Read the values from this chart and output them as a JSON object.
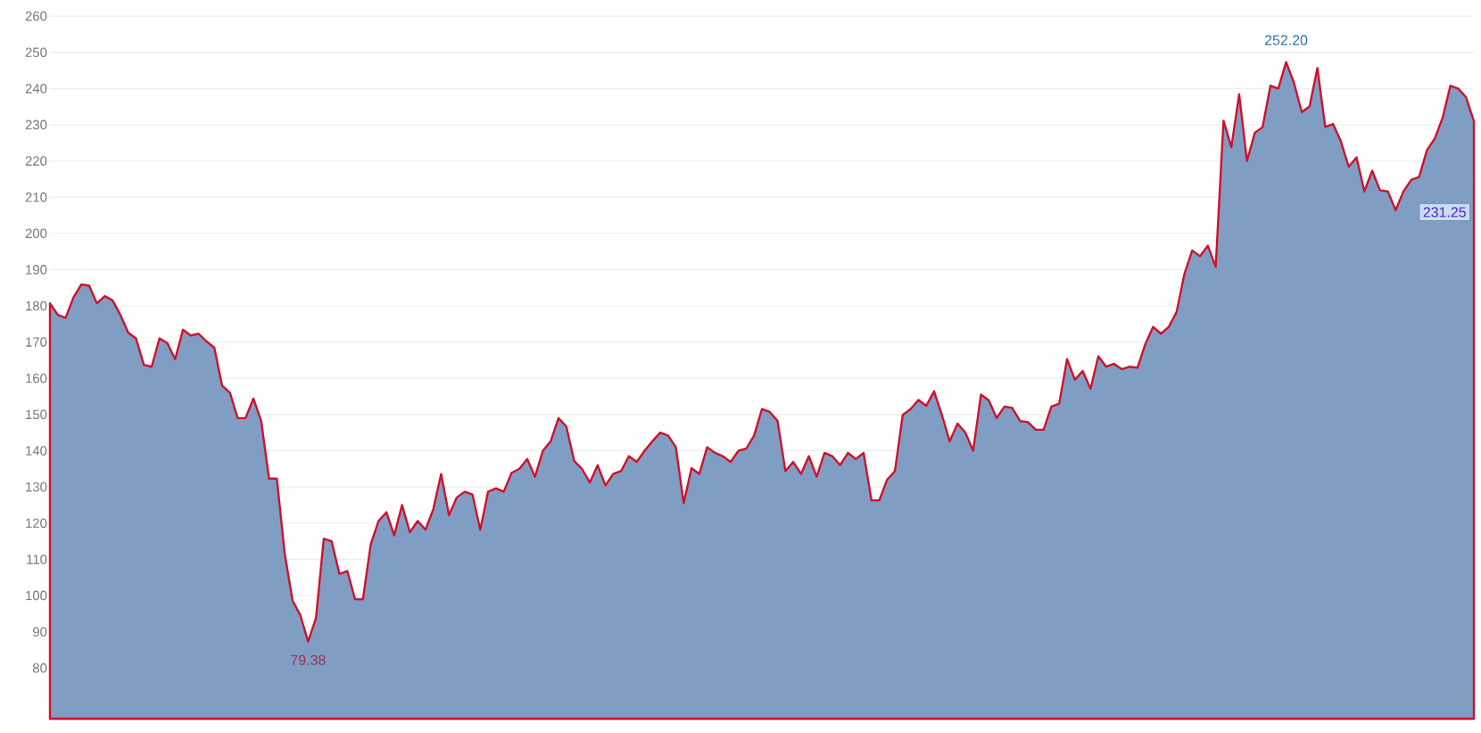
{
  "chart_data": {
    "type": "area",
    "categories": [
      null,
      null,
      null,
      null,
      null,
      null,
      null,
      null,
      null,
      null,
      null,
      null,
      null,
      null,
      null,
      null,
      null,
      null,
      null,
      null,
      null,
      null,
      null,
      null,
      null,
      null,
      null,
      null,
      null,
      null,
      null,
      null,
      null,
      null,
      null,
      null,
      null,
      null,
      null,
      null,
      null,
      null,
      null,
      null,
      null,
      null,
      null,
      null,
      null,
      null,
      null,
      null,
      null,
      null,
      null,
      null,
      null,
      null,
      null,
      null,
      null,
      null,
      null,
      null,
      null,
      null,
      null,
      null,
      null,
      null,
      null,
      null,
      null,
      null,
      null,
      null,
      null,
      null,
      null,
      null,
      null,
      null,
      null,
      null,
      null,
      null,
      null,
      null,
      null,
      null,
      null,
      null,
      null,
      null,
      null,
      null,
      null,
      null,
      null,
      null,
      null,
      null,
      null,
      null,
      null,
      null,
      null,
      null,
      null,
      null,
      null,
      null,
      null,
      null,
      null,
      null,
      null,
      null,
      null,
      null,
      null,
      null,
      null,
      null,
      null,
      null,
      null,
      null,
      null,
      null,
      null,
      null,
      null,
      null,
      null,
      null,
      null,
      null,
      null,
      null,
      null,
      null,
      null,
      null,
      null,
      null,
      null,
      null,
      null,
      null,
      null,
      null,
      null,
      null,
      null,
      null,
      null,
      null,
      null,
      null,
      null,
      null,
      null,
      null,
      null,
      null,
      null,
      null,
      null,
      null,
      null,
      null,
      null,
      null,
      null,
      null,
      null,
      null,
      null,
      null,
      null,
      null,
      null
    ],
    "series": [
      {
        "color": "#d0112b",
        "values": [
          180.7,
          177.5,
          176.7,
          182.3,
          185.9,
          185.6,
          180.7,
          182.7,
          181.5,
          177.5,
          172.6,
          171,
          163.7,
          163.2,
          171,
          169.7,
          165.3,
          173.4,
          171.8,
          172.3,
          170.2,
          168.5,
          158,
          156,
          149,
          149,
          154.4,
          148.2,
          132.3,
          132.3,
          111.7,
          98.7,
          94.6,
          87.3,
          93.8,
          115.7,
          115,
          106,
          106.8,
          99,
          99,
          114.1,
          120.6,
          123,
          116.6,
          125,
          117.5,
          120.6,
          118.2,
          123.9,
          133.6,
          122.2,
          127.1,
          128.7,
          127.9,
          118.2,
          128.7,
          129.6,
          128.7,
          133.9,
          135,
          137.7,
          132.8,
          140,
          142.6,
          149,
          146.7,
          137.2,
          135,
          131.2,
          136,
          130.4,
          133.6,
          134.4,
          138.5,
          136.9,
          140,
          142.6,
          145,
          144.2,
          141,
          125.5,
          135.2,
          133.6,
          141,
          139.4,
          138.5,
          136.9,
          140,
          140.6,
          144.2,
          151.5,
          150.7,
          148.2,
          134.4,
          136.9,
          133.6,
          138.5,
          132.8,
          139.4,
          138.5,
          136,
          139.4,
          137.7,
          139.4,
          126.3,
          126.3,
          132,
          134.4,
          149.9,
          151.5,
          154,
          152.4,
          156.4,
          149.9,
          142.6,
          147.5,
          145,
          140,
          155.5,
          153.9,
          149,
          152.2,
          151.8,
          148.2,
          147.9,
          145.8,
          145.8,
          152.2,
          153,
          165.3,
          159.6,
          162,
          157.1,
          166.1,
          163.2,
          164,
          162.5,
          163.2,
          162.9,
          169.4,
          174.2,
          172.3,
          174.2,
          178.3,
          188.8,
          195.3,
          193.7,
          196.6,
          190.8,
          231.1,
          223.8,
          238.4,
          220,
          227.8,
          229.4,
          240.8,
          240,
          247.3,
          241.6,
          233.5,
          235.1,
          245.7,
          229.4,
          230.2,
          225.4,
          218.4,
          221,
          211.6,
          217.3,
          211.9,
          211.6,
          206.4,
          211.6,
          214.8,
          215.6,
          223,
          226.2,
          231.9,
          240.8,
          240,
          237.6,
          231
        ]
      }
    ],
    "ylim": [
      66,
      261
    ],
    "yticks": [
      80,
      90,
      100,
      110,
      120,
      130,
      140,
      150,
      160,
      170,
      180,
      190,
      200,
      210,
      220,
      230,
      240,
      250,
      260
    ],
    "grid": "y",
    "annotations": [
      "252.20",
      "79.38",
      "231.25"
    ]
  }
}
